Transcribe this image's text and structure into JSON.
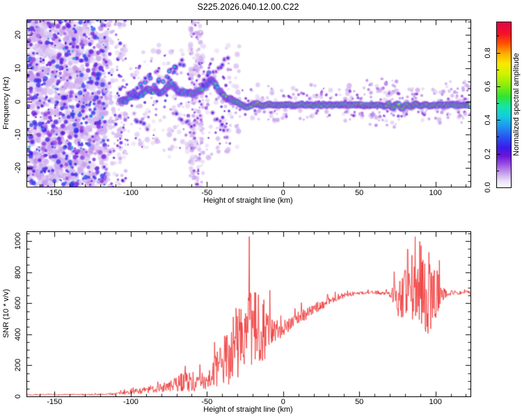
{
  "title": "S225.2026.040.12.00.C22",
  "background": "#ffffff",
  "axis_color": "#000000",
  "top_panel": {
    "xlabel": "Height of straight line (km)",
    "ylabel": "Frequency (Hz)",
    "x_ticks": [
      -150,
      -100,
      -50,
      0,
      50,
      100
    ],
    "x_minor_step": 10,
    "y_ticks": [
      -20,
      -10,
      0,
      10,
      20
    ],
    "y_minor_step": 2,
    "x_range": [
      -168,
      123
    ],
    "y_range": [
      -25.6,
      24.4
    ]
  },
  "colorbar": {
    "label": "Normalized spectral amplitude",
    "ticks": [
      "0.0",
      "0.2",
      "0.4",
      "0.6",
      "0.8"
    ],
    "tick_values": [
      0,
      0.2,
      0.4,
      0.6,
      0.8
    ],
    "minor_tick_values": [
      0.1,
      0.3,
      0.5,
      0.7,
      0.9
    ],
    "range": [
      0,
      0.98
    ],
    "stops": [
      [
        0.0,
        "#ffffff"
      ],
      [
        0.04,
        "#e9def7"
      ],
      [
        0.09,
        "#c49aec"
      ],
      [
        0.14,
        "#9a50e2"
      ],
      [
        0.19,
        "#6a14dc"
      ],
      [
        0.24,
        "#3c1ae8"
      ],
      [
        0.3,
        "#2850f2"
      ],
      [
        0.37,
        "#1e96f0"
      ],
      [
        0.43,
        "#12cde0"
      ],
      [
        0.49,
        "#16e4a8"
      ],
      [
        0.55,
        "#30e432"
      ],
      [
        0.62,
        "#8cee0a"
      ],
      [
        0.69,
        "#d2f200"
      ],
      [
        0.75,
        "#f8e800"
      ],
      [
        0.81,
        "#ffae00"
      ],
      [
        0.87,
        "#ff5400"
      ],
      [
        0.93,
        "#f31226"
      ],
      [
        1.0,
        "#e2004e"
      ]
    ]
  },
  "bottom_panel": {
    "xlabel": "Height of straight line (km)",
    "ylabel": "SNR (10 * v/v)",
    "x_ticks": [
      -150,
      -100,
      -50,
      0,
      50,
      100
    ],
    "x_minor_step": 10,
    "y_ticks": [
      0,
      200,
      400,
      600,
      800,
      1000
    ],
    "y_minor_step": 50,
    "x_range": [
      -168,
      123
    ],
    "y_range": [
      0,
      1060
    ]
  },
  "chart_data": [
    {
      "type": "heatmap",
      "title": "S225.2026.040.12.00.C22",
      "xlabel": "Height of straight line (km)",
      "ylabel": "Frequency (Hz)",
      "x_range": [
        -168,
        123
      ],
      "y_range": [
        -25.6,
        24.4
      ],
      "colorbar_label": "Normalized spectral amplitude",
      "colorbar_range": [
        0,
        0.98
      ],
      "description": "Doppler spectrogram: dense purple speckle noise below -116 km, scattered speckle to -30 km, a faint vertical noise stripe near -57 km, and a wandering echo trace starting near -107 km (0 Hz) rising to about +6 Hz near -47 km, then settling into a strong continuous band near -1 Hz from -25 km to 123 km with a green core and yellow/red amplitude peaks.",
      "noise_patches": [
        [
          -168,
          -116,
          -26,
          25,
          880,
          0.04,
          0.1,
          2.5,
          7.0
        ],
        [
          -168,
          -116,
          -26,
          25,
          430,
          0.13,
          0.3,
          1.5,
          4.5
        ],
        [
          -168,
          -116,
          -26,
          25,
          40,
          0.3,
          0.42,
          1.5,
          3.0
        ],
        [
          -117,
          -103,
          -26,
          25,
          120,
          0.04,
          0.09,
          2.0,
          5.0
        ],
        [
          -117,
          -103,
          -26,
          25,
          48,
          0.12,
          0.24,
          1.5,
          3.5
        ],
        [
          -110,
          -28,
          -17,
          17,
          210,
          0.03,
          0.08,
          2.0,
          5.0
        ],
        [
          -110,
          -30,
          -14,
          14,
          85,
          0.1,
          0.22,
          1.5,
          3.5
        ],
        [
          -61,
          -52,
          -26,
          25,
          140,
          0.04,
          0.09,
          2.0,
          5.0
        ],
        [
          -60,
          -53,
          -26,
          25,
          30,
          0.1,
          0.18,
          1.5,
          3.0
        ],
        [
          -30,
          123,
          -6,
          5,
          170,
          0.04,
          0.09,
          2.0,
          4.5
        ],
        [
          -30,
          123,
          -5,
          4,
          60,
          0.1,
          0.17,
          1.5,
          3.0
        ],
        [
          55,
          75,
          -8,
          7,
          40,
          0.05,
          0.12,
          2.0,
          4.0
        ],
        [
          100,
          123,
          -7,
          6,
          30,
          0.05,
          0.12,
          2.0,
          4.0
        ]
      ],
      "streaks": [
        [
          -104,
          1,
          -83,
          9,
          14,
          0.15,
          0.45
        ],
        [
          -89,
          3,
          -65,
          12,
          16,
          0.18,
          0.5
        ],
        [
          -71,
          -3,
          -58,
          -9,
          9,
          0.12,
          0.3
        ],
        [
          -54,
          5,
          -36,
          13,
          12,
          0.12,
          0.42
        ],
        [
          -47,
          -4,
          -36,
          -10,
          8,
          0.1,
          0.25
        ],
        [
          -99,
          -4,
          -88,
          -9,
          7,
          0.1,
          0.28
        ]
      ],
      "trace_path": [
        [
          -107,
          0
        ],
        [
          -103,
          0.5
        ],
        [
          -100,
          1.2
        ],
        [
          -97,
          2.2
        ],
        [
          -94,
          1.5
        ],
        [
          -91,
          2.8
        ],
        [
          -88,
          3.8
        ],
        [
          -86,
          2.6
        ],
        [
          -84,
          3.2
        ],
        [
          -81,
          2.2
        ],
        [
          -79,
          3.0
        ],
        [
          -76,
          4.6
        ],
        [
          -73,
          5.6
        ],
        [
          -71,
          4.2
        ],
        [
          -69,
          3.0
        ],
        [
          -66,
          2.4
        ],
        [
          -63,
          2.8
        ],
        [
          -60,
          2.2
        ],
        [
          -57,
          2.8
        ],
        [
          -54,
          3.6
        ],
        [
          -51,
          4.4
        ],
        [
          -49,
          5.8
        ],
        [
          -47,
          6.4
        ],
        [
          -45,
          5.2
        ],
        [
          -43,
          4.0
        ],
        [
          -41,
          2.6
        ],
        [
          -39,
          1.8
        ],
        [
          -37,
          1.2
        ],
        [
          -35,
          0.6
        ],
        [
          -33,
          0.2
        ],
        [
          -31,
          -0.2
        ],
        [
          -29,
          -0.6
        ],
        [
          -27,
          -1.2
        ],
        [
          -25,
          -1.6
        ],
        [
          -23,
          -1.8
        ],
        [
          -21,
          -1.4
        ],
        [
          -19,
          -0.8
        ],
        [
          -17,
          -0.6
        ],
        [
          -15,
          -1.0
        ],
        [
          -13,
          -1.4
        ],
        [
          -11,
          -1.2
        ],
        [
          -9,
          -0.8
        ],
        [
          -7,
          -1.0
        ],
        [
          -5,
          -1.2
        ],
        [
          -3,
          -1.0
        ],
        [
          -1,
          -1.1
        ],
        [
          2,
          -1.0
        ],
        [
          6,
          -1.1
        ],
        [
          10,
          -1.0
        ],
        [
          15,
          -1.1
        ],
        [
          20,
          -1.0
        ],
        [
          25,
          -1.1
        ],
        [
          30,
          -1.0
        ],
        [
          35,
          -1.1
        ],
        [
          40,
          -1.0
        ],
        [
          45,
          -1.1
        ],
        [
          50,
          -1.0
        ],
        [
          55,
          -1.1
        ],
        [
          60,
          -1.2
        ],
        [
          63,
          -0.8
        ],
        [
          66,
          -1.6
        ],
        [
          69,
          -0.8
        ],
        [
          72,
          -1.8
        ],
        [
          75,
          -0.6
        ],
        [
          78,
          -2.0
        ],
        [
          81,
          -0.8
        ],
        [
          84,
          -1.8
        ],
        [
          87,
          -0.6
        ],
        [
          90,
          -1.6
        ],
        [
          93,
          -0.8
        ],
        [
          96,
          -1.4
        ],
        [
          99,
          -1.0
        ],
        [
          102,
          -1.2
        ],
        [
          105,
          -1.0
        ],
        [
          108,
          -1.1
        ],
        [
          112,
          -1.0
        ],
        [
          116,
          -1.1
        ],
        [
          120,
          -1.0
        ],
        [
          123,
          -1.0
        ]
      ],
      "trace_start": -107,
      "trace_strong_from": -24,
      "trace_blend_from": -33,
      "hot_zones": [
        [
          -33,
          8,
          0.28
        ],
        [
          8,
          50,
          0.07
        ],
        [
          50,
          123,
          0.25
        ]
      ]
    },
    {
      "type": "line",
      "xlabel": "Height of straight line (km)",
      "ylabel": "SNR (10 * v/v)",
      "x_range": [
        -168,
        123
      ],
      "y_range": [
        0,
        1060
      ],
      "line_color": "#ee3333",
      "series": [
        {
          "name": "SNR",
          "envelope_points": [
            [
              -168,
              10,
              8,
              0.5
            ],
            [
              -140,
              11,
              9,
              0.5
            ],
            [
              -122,
              12,
              10,
              0.5
            ],
            [
              -112,
              15,
              14,
              0.45
            ],
            [
              -104,
              22,
              22,
              0.4
            ],
            [
              -96,
              30,
              34,
              0.4
            ],
            [
              -88,
              38,
              48,
              0.38
            ],
            [
              -80,
              48,
              60,
              0.38
            ],
            [
              -73,
              58,
              75,
              0.36
            ],
            [
              -67,
              70,
              120,
              0.32
            ],
            [
              -63,
              75,
              140,
              0.3
            ],
            [
              -59,
              60,
              90,
              0.35
            ],
            [
              -55,
              70,
              110,
              0.33
            ],
            [
              -51,
              85,
              130,
              0.32
            ],
            [
              -47,
              100,
              170,
              0.3
            ],
            [
              -44,
              115,
              220,
              0.28
            ],
            [
              -41,
              130,
              280,
              0.26
            ],
            [
              -38,
              150,
              340,
              0.24
            ],
            [
              -35,
              170,
              420,
              0.22
            ],
            [
              -32,
              190,
              500,
              0.2
            ],
            [
              -29,
              210,
              540,
              0.2
            ],
            [
              -26,
              230,
              560,
              0.2
            ],
            [
              -23,
              250,
              540,
              0.22
            ],
            [
              -20,
              280,
              520,
              0.22
            ],
            [
              -17,
              310,
              480,
              0.24
            ],
            [
              -14,
              330,
              520,
              0.22
            ],
            [
              -12,
              345,
              420,
              0.26
            ],
            [
              -10,
              360,
              300,
              0.3
            ],
            [
              -8,
              375,
              220,
              0.34
            ],
            [
              -6,
              390,
              170,
              0.36
            ],
            [
              -4,
              405,
              140,
              0.38
            ],
            [
              -2,
              420,
              120,
              0.4
            ],
            [
              0,
              435,
              110,
              0.4
            ],
            [
              4,
              462,
              100,
              0.42
            ],
            [
              8,
              488,
              95,
              0.42
            ],
            [
              12,
              512,
              88,
              0.44
            ],
            [
              16,
              535,
              80,
              0.44
            ],
            [
              20,
              558,
              70,
              0.45
            ],
            [
              24,
              580,
              62,
              0.45
            ],
            [
              28,
              602,
              55,
              0.46
            ],
            [
              32,
              622,
              48,
              0.46
            ],
            [
              36,
              638,
              40,
              0.47
            ],
            [
              40,
              650,
              34,
              0.48
            ],
            [
              44,
              658,
              30,
              0.48
            ],
            [
              48,
              664,
              26,
              0.49
            ],
            [
              52,
              667,
              24,
              0.5
            ],
            [
              56,
              669,
              22,
              0.5
            ],
            [
              60,
              670,
              22,
              0.5
            ],
            [
              64,
              669,
              24,
              0.5
            ],
            [
              68,
              666,
              30,
              0.5
            ],
            [
              71,
              662,
              60,
              0.5
            ],
            [
              74,
              656,
              220,
              0.5
            ],
            [
              77,
              660,
              340,
              0.5
            ],
            [
              80,
              664,
              300,
              0.5
            ],
            [
              83,
              660,
              340,
              0.5
            ],
            [
              86,
              664,
              400,
              0.5
            ],
            [
              89,
              658,
              440,
              0.5
            ],
            [
              92,
              668,
              500,
              0.5
            ],
            [
              94,
              672,
              560,
              0.5
            ],
            [
              96,
              666,
              520,
              0.5
            ],
            [
              98,
              662,
              440,
              0.5
            ],
            [
              100,
              660,
              360,
              0.5
            ],
            [
              102,
              664,
              260,
              0.5
            ],
            [
              104,
              667,
              140,
              0.5
            ],
            [
              106,
              668,
              70,
              0.5
            ],
            [
              109,
              669,
              40,
              0.5
            ],
            [
              113,
              670,
              30,
              0.5
            ],
            [
              117,
              669,
              28,
              0.5
            ],
            [
              121,
              670,
              26,
              0.5
            ],
            [
              123,
              670,
              26,
              0.5
            ]
          ]
        }
      ]
    }
  ]
}
